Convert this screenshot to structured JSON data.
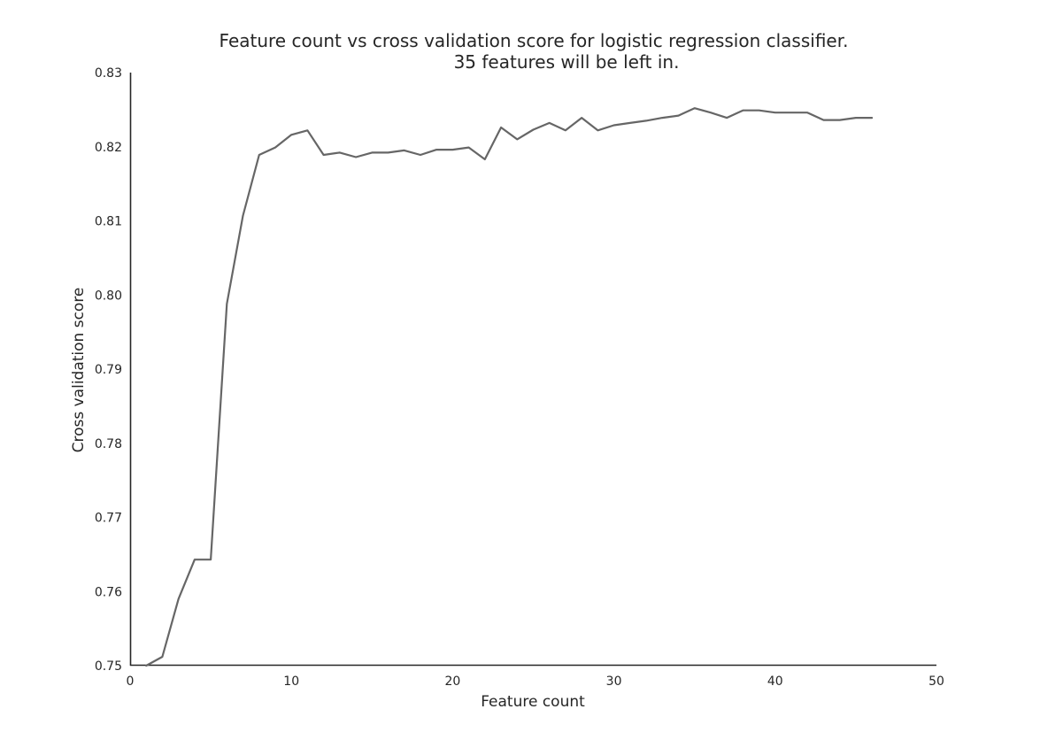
{
  "chart_data": {
    "type": "line",
    "title": "Feature count vs cross validation score for logistic regression classifier.",
    "subtitle": "35 features will be left in.",
    "xlabel": "Feature count",
    "ylabel": "Cross validation score",
    "xlim": [
      0,
      50
    ],
    "ylim": [
      0.75,
      0.83
    ],
    "xticks": [
      "0",
      "10",
      "20",
      "30",
      "40",
      "50"
    ],
    "yticks": [
      "0.75",
      "0.76",
      "0.77",
      "0.78",
      "0.79",
      "0.80",
      "0.81",
      "0.82",
      "0.83"
    ],
    "grid": false,
    "line_color": "#666666",
    "series": [
      {
        "x": [
          1,
          2,
          3,
          4,
          5,
          6,
          7,
          8,
          9,
          10,
          11,
          12,
          13,
          14,
          15,
          16,
          17,
          18,
          19,
          20,
          21,
          22,
          23,
          24,
          25,
          26,
          27,
          28,
          29,
          30,
          31,
          32,
          33,
          34,
          35,
          36,
          37,
          38,
          39,
          40,
          41,
          42,
          43,
          44,
          45,
          46
        ],
        "values": [
          0.75,
          0.7512,
          0.759,
          0.7643,
          0.7643,
          0.7988,
          0.8107,
          0.8189,
          0.8199,
          0.8216,
          0.8222,
          0.8189,
          0.8192,
          0.8186,
          0.8192,
          0.8192,
          0.8195,
          0.8189,
          0.8196,
          0.8196,
          0.8199,
          0.8183,
          0.8226,
          0.821,
          0.8223,
          0.8232,
          0.8222,
          0.8239,
          0.8222,
          0.8229,
          0.8232,
          0.8235,
          0.8239,
          0.8242,
          0.8252,
          0.8246,
          0.8239,
          0.8249,
          0.8249,
          0.8246,
          0.8246,
          0.8246,
          0.8236,
          0.8236,
          0.8239,
          0.8239
        ]
      }
    ]
  }
}
